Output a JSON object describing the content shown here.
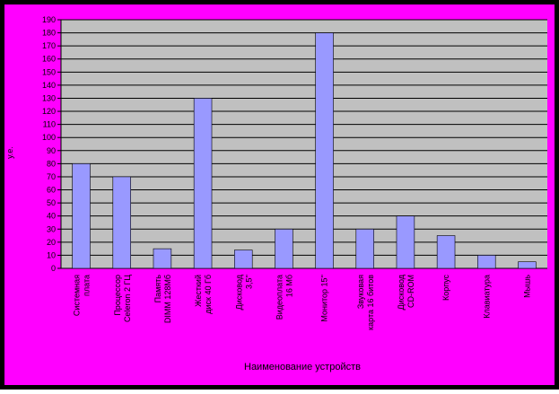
{
  "chart_data": {
    "type": "bar",
    "y_label": "у.е.",
    "x_label": "Наименование устройств",
    "categories": [
      "Системная плата",
      "Процессор Celeron 2 ГЦ",
      "Память DIMM 128Мб",
      "Жесткий диск 40 Гб",
      "Дисковод 3,5''",
      "Видеоплата 16 Мб",
      "Монитор 15''",
      "Звуковая карта 16 битов",
      "Дисковод CD-ROM",
      "Корпус",
      "Клавиатура",
      "Мышь"
    ],
    "values": [
      80,
      70,
      15,
      130,
      14,
      30,
      180,
      30,
      40,
      25,
      10,
      5
    ],
    "color": "#9999ff",
    "ylim": [
      0,
      190
    ],
    "yticks": [
      0,
      10,
      20,
      30,
      40,
      50,
      60,
      70,
      80,
      90,
      100,
      110,
      120,
      130,
      140,
      150,
      160,
      170,
      180,
      190
    ],
    "grid": true
  }
}
